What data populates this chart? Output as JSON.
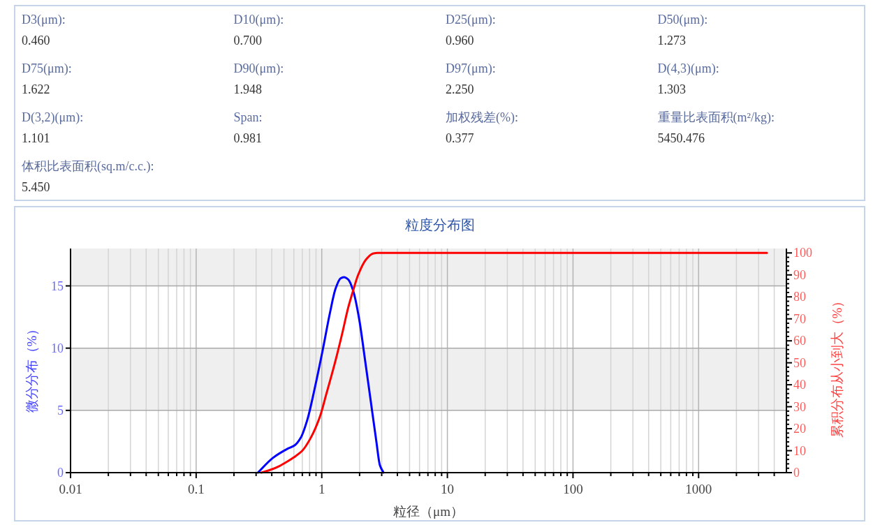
{
  "chart_data": [
    {
      "type": "other",
      "annotations": [
        "D3(μm):",
        "0.460",
        "D10(μm):",
        "0.700",
        "D25(μm):",
        "0.960",
        "D50(μm):",
        "1.273",
        "D75(μm):",
        "1.622",
        "D90(μm):",
        "1.948",
        "D97(μm):",
        "2.250",
        "D(4,3)(μm):",
        "1.303",
        "D(3,2)(μm):",
        "1.101",
        "Span:",
        "0.981",
        "加权残差(%):",
        "0.377",
        "重量比表面积(m²/kg):",
        "5450.476",
        "体积比表面积(sq.m/c.c.):",
        "5.450"
      ]
    },
    {
      "type": "line",
      "title": "粒度分布图",
      "xlabel": "粒径（μm）",
      "ylabel": "微分分布（%）",
      "y2label": "累积分布从小到大（%）",
      "log": "x",
      "grid": true,
      "xlim": [
        0.01,
        5000
      ],
      "xticks": [
        0.01,
        {
          "value": 0.02,
          "label": null
        },
        {
          "value": 0.03,
          "label": null
        },
        {
          "value": 0.04,
          "label": null
        },
        {
          "value": 0.05,
          "label": null
        },
        {
          "value": 0.06,
          "label": null
        },
        {
          "value": 0.07,
          "label": null
        },
        {
          "value": 0.08,
          "label": null
        },
        {
          "value": 0.09,
          "label": null
        },
        0.1,
        {
          "value": 0.2,
          "label": null
        },
        {
          "value": 0.3,
          "label": null
        },
        {
          "value": 0.4,
          "label": null
        },
        {
          "value": 0.5,
          "label": null
        },
        {
          "value": 0.6,
          "label": null
        },
        {
          "value": 0.7,
          "label": null
        },
        {
          "value": 0.8,
          "label": null
        },
        {
          "value": 0.9,
          "label": null
        },
        1,
        {
          "value": 2,
          "label": null
        },
        {
          "value": 3,
          "label": null
        },
        {
          "value": 4,
          "label": null
        },
        {
          "value": 5,
          "label": null
        },
        {
          "value": 6,
          "label": null
        },
        {
          "value": 7,
          "label": null
        },
        {
          "value": 8,
          "label": null
        },
        {
          "value": 9,
          "label": null
        },
        10,
        {
          "value": 20,
          "label": null
        },
        {
          "value": 30,
          "label": null
        },
        {
          "value": 40,
          "label": null
        },
        {
          "value": 50,
          "label": null
        },
        {
          "value": 60,
          "label": null
        },
        {
          "value": 70,
          "label": null
        },
        {
          "value": 80,
          "label": null
        },
        {
          "value": 90,
          "label": null
        },
        100,
        {
          "value": 200,
          "label": null
        },
        {
          "value": 300,
          "label": null
        },
        {
          "value": 400,
          "label": null
        },
        {
          "value": 500,
          "label": null
        },
        {
          "value": 600,
          "label": null
        },
        {
          "value": 700,
          "label": null
        },
        {
          "value": 800,
          "label": null
        },
        {
          "value": 900,
          "label": null
        },
        1000,
        {
          "value": 2000,
          "label": null
        },
        {
          "value": 3000,
          "label": null
        },
        {
          "value": 4000,
          "label": null
        }
      ],
      "ylim": [
        0,
        18
      ],
      "yticks": [
        0,
        5,
        10,
        15
      ],
      "y2lim": [
        0,
        102
      ],
      "y2ticks": [
        0,
        {
          "value": 2,
          "label": null
        },
        {
          "value": 4,
          "label": null
        },
        {
          "value": 6,
          "label": null
        },
        {
          "value": 8,
          "label": null
        },
        10,
        {
          "value": 12,
          "label": null
        },
        {
          "value": 14,
          "label": null
        },
        {
          "value": 16,
          "label": null
        },
        {
          "value": 18,
          "label": null
        },
        20,
        {
          "value": 22,
          "label": null
        },
        {
          "value": 24,
          "label": null
        },
        {
          "value": 26,
          "label": null
        },
        {
          "value": 28,
          "label": null
        },
        30,
        {
          "value": 32,
          "label": null
        },
        {
          "value": 34,
          "label": null
        },
        {
          "value": 36,
          "label": null
        },
        {
          "value": 38,
          "label": null
        },
        40,
        {
          "value": 42,
          "label": null
        },
        {
          "value": 44,
          "label": null
        },
        {
          "value": 46,
          "label": null
        },
        {
          "value": 48,
          "label": null
        },
        50,
        {
          "value": 52,
          "label": null
        },
        {
          "value": 54,
          "label": null
        },
        {
          "value": 56,
          "label": null
        },
        {
          "value": 58,
          "label": null
        },
        60,
        {
          "value": 62,
          "label": null
        },
        {
          "value": 64,
          "label": null
        },
        {
          "value": 66,
          "label": null
        },
        {
          "value": 68,
          "label": null
        },
        70,
        {
          "value": 72,
          "label": null
        },
        {
          "value": 74,
          "label": null
        },
        {
          "value": 76,
          "label": null
        },
        {
          "value": 78,
          "label": null
        },
        80,
        {
          "value": 82,
          "label": null
        },
        {
          "value": 84,
          "label": null
        },
        {
          "value": 86,
          "label": null
        },
        {
          "value": 88,
          "label": null
        },
        90,
        {
          "value": 92,
          "label": null
        },
        {
          "value": 94,
          "label": null
        },
        {
          "value": 96,
          "label": null
        },
        {
          "value": 98,
          "label": null
        },
        100
      ],
      "bands": [
        {
          "axis": "y",
          "from": 5,
          "to": 10,
          "color": "#efefef"
        },
        {
          "axis": "y",
          "from": 15,
          "to": 18,
          "color": "#efefef"
        }
      ],
      "series": [
        {
          "color": "#0000ff",
          "x": [
            0.31,
            0.41,
            0.53,
            0.61,
            0.68,
            0.77,
            0.88,
            1.02,
            1.16,
            1.29,
            1.41,
            1.5,
            1.63,
            1.78,
            1.98,
            2.2,
            2.45,
            2.72,
            2.9,
            3.1
          ],
          "values": [
            0,
            1.2,
            1.9,
            2.2,
            2.8,
            4.3,
            6.8,
            9.9,
            12.8,
            14.8,
            15.6,
            15.7,
            15.5,
            14.6,
            12.4,
            9.2,
            5.8,
            2.5,
            0.6,
            0
          ]
        },
        {
          "color": "#ff0000",
          "axis": "y2",
          "x": [
            0.33,
            0.4,
            0.46,
            0.53,
            0.6,
            0.7,
            0.82,
            0.96,
            1.09,
            1.273,
            1.45,
            1.622,
            1.78,
            1.948,
            2.25,
            2.55,
            2.78,
            3500
          ],
          "values": [
            0,
            1.5,
            3,
            5,
            7,
            10,
            16,
            25,
            36,
            50,
            63,
            75,
            83,
            90,
            97,
            99.7,
            100,
            100
          ]
        }
      ]
    }
  ]
}
